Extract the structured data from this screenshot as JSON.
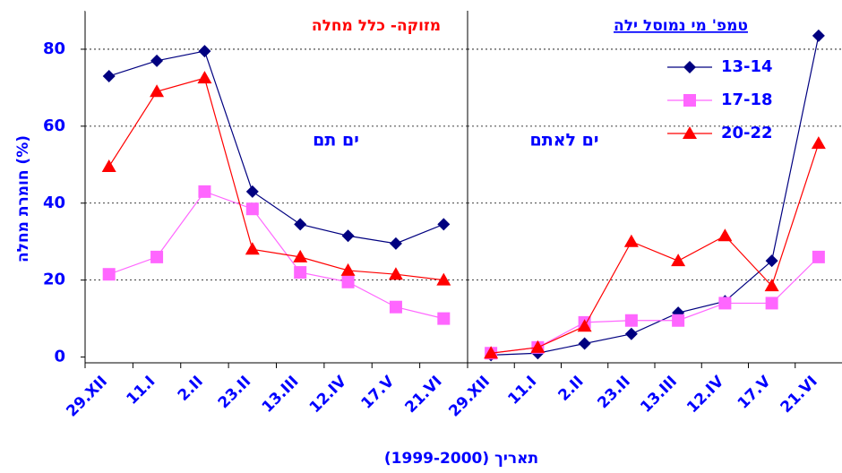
{
  "chart_data": [
    {
      "type": "line",
      "title": "מזוקה- כלל מחלה",
      "title_color": "#ff0000",
      "title_underline": false,
      "annotation": "ים תם",
      "ylabel": "חומרת מחלה (%)",
      "xlabel": "תאריך   (1999-2000)",
      "categories": [
        "29.XII",
        "11.I",
        "2.II",
        "23.II",
        "13.III",
        "12.IV",
        "17.V",
        "21.VI"
      ],
      "series": [
        {
          "name": "13-14",
          "color": "#000080",
          "marker": "diamond",
          "values": [
            73,
            77,
            79.5,
            43,
            34.5,
            31.5,
            29.5,
            34.5
          ]
        },
        {
          "name": "17-18",
          "color": "#ff66ff",
          "marker": "square",
          "values": [
            21.5,
            26,
            43,
            38.5,
            22,
            19.5,
            13,
            10
          ]
        },
        {
          "name": "20-22",
          "color": "#ff0000",
          "marker": "triangle",
          "values": [
            49.5,
            69,
            72.5,
            28,
            26,
            22.5,
            21.5,
            20
          ]
        }
      ],
      "ylim": [
        -1.5,
        90
      ],
      "yticks": [
        0,
        20,
        40,
        60,
        80
      ],
      "grid": true,
      "legend": false
    },
    {
      "type": "line",
      "title": "טמפ' מי נמוסל ילה",
      "title_color": "#0000ff",
      "title_underline": true,
      "annotation": "ים לאתם",
      "categories": [
        "29.XII",
        "11.I",
        "2.II",
        "23.II",
        "13.III",
        "12.IV",
        "17.V",
        "21.VI"
      ],
      "series": [
        {
          "name": "13-14",
          "color": "#000080",
          "marker": "diamond",
          "values": [
            0.5,
            1,
            3.5,
            6,
            11.5,
            14.5,
            25,
            83.5
          ]
        },
        {
          "name": "17-18",
          "color": "#ff66ff",
          "marker": "square",
          "values": [
            1,
            2.5,
            9,
            9.5,
            9.5,
            14,
            14,
            26
          ]
        },
        {
          "name": "20-22",
          "color": "#ff0000",
          "marker": "triangle",
          "values": [
            1,
            2.5,
            8,
            30,
            25,
            31.5,
            18.5,
            55.5
          ]
        }
      ],
      "ylim": [
        -1.5,
        90
      ],
      "yticks": [
        0,
        20,
        40,
        60,
        80
      ],
      "grid": true,
      "legend": true
    }
  ]
}
